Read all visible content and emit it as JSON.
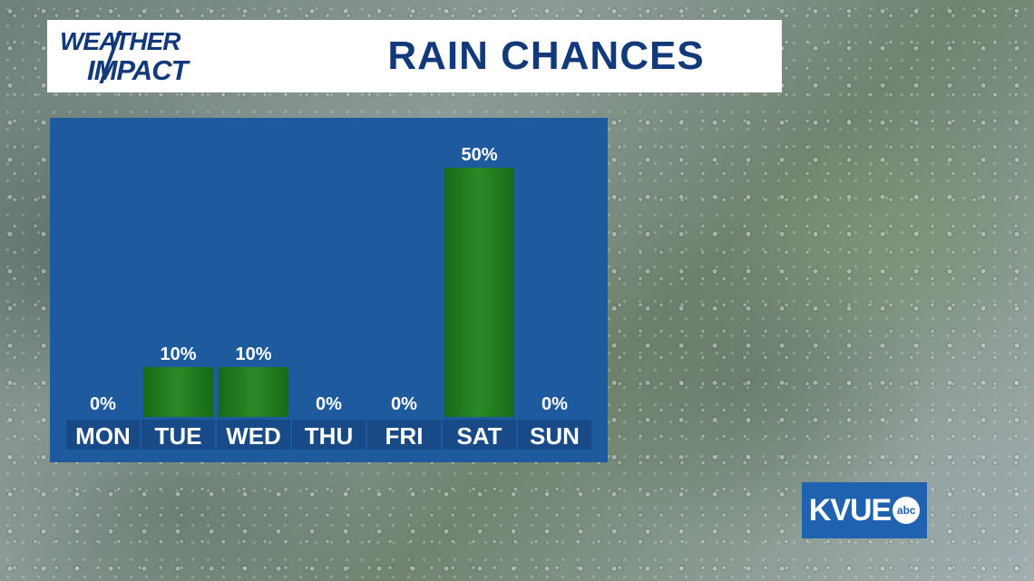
{
  "header": {
    "logo_line1": "WEATHER",
    "logo_line2": "IMPACT",
    "title": "RAIN CHANCES"
  },
  "brand": {
    "station": "KVUE",
    "network": "abc"
  },
  "colors": {
    "header_text": "#123a7a",
    "panel": "#1d5a9e",
    "bar": "#1f7a1f",
    "label_box": "#174a87",
    "station_box": "#1f63b0"
  },
  "chart_data": {
    "type": "bar",
    "title": "RAIN CHANCES",
    "categories": [
      "MON",
      "TUE",
      "WED",
      "THU",
      "FRI",
      "SAT",
      "SUN"
    ],
    "values": [
      0,
      10,
      10,
      0,
      0,
      50,
      0
    ],
    "value_labels": [
      "0%",
      "10%",
      "10%",
      "0%",
      "0%",
      "50%",
      "0%"
    ],
    "ylim": [
      0,
      50
    ],
    "grid": false,
    "legend": "none"
  }
}
